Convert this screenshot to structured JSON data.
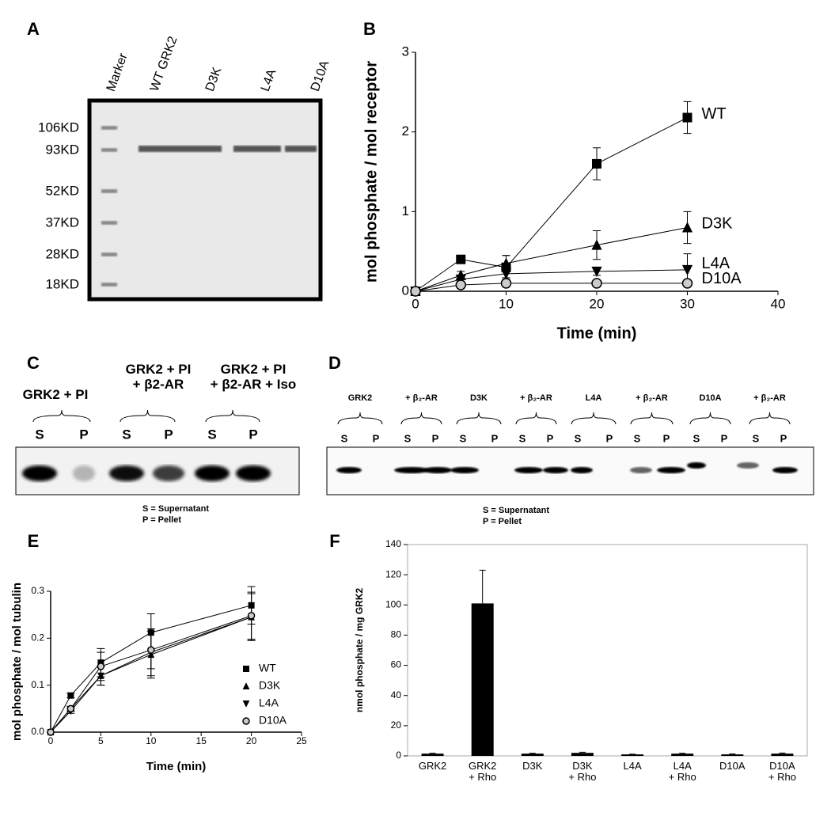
{
  "panels": {
    "A": {
      "label": "A",
      "lanes": [
        "Marker",
        "WT GRK2",
        "D3K",
        "L4A",
        "D10A"
      ],
      "markers": [
        "106KD",
        "93KD",
        "52KD",
        "37KD",
        "28KD",
        "18KD"
      ]
    },
    "C": {
      "label": "C",
      "groups": [
        "GRK2 + PI",
        "GRK2 + PI\n+ β2-AR",
        "GRK2 + PI\n+ β2-AR + Iso"
      ],
      "lanes": [
        "S",
        "P",
        "S",
        "P",
        "S",
        "P"
      ],
      "legend": [
        "S = Supernatant",
        "P = Pellet"
      ]
    },
    "D": {
      "label": "D",
      "groups": [
        "GRK2",
        "+ β₂-AR",
        "D3K",
        "+ β₂-AR",
        "L4A",
        "+ β₂-AR",
        "D10A",
        "+ β₂-AR"
      ],
      "lanes": [
        "S",
        "P",
        "S",
        "P",
        "S",
        "P",
        "S",
        "P",
        "S",
        "P",
        "S",
        "P",
        "S",
        "P",
        "S",
        "P"
      ],
      "legend": [
        "S = Supernatant",
        "P = Pellet"
      ]
    }
  },
  "chart_data": [
    {
      "type": "line",
      "label": "B",
      "xlabel": "Time (min)",
      "ylabel": "mol phosphate / mol receptor",
      "x": [
        0,
        5,
        10,
        20,
        30
      ],
      "xlim": [
        0,
        40
      ],
      "xticks": [
        0,
        10,
        20,
        30,
        40
      ],
      "ylim": [
        0,
        3
      ],
      "yticks": [
        0,
        1,
        2,
        3
      ],
      "legend": "end",
      "series": [
        {
          "name": "WT",
          "color": "#000000",
          "marker": "square",
          "values": [
            0,
            0.4,
            0.3,
            1.6,
            2.18
          ],
          "errors": [
            0,
            0.03,
            0.15,
            0.2,
            0.2
          ]
        },
        {
          "name": "D3K",
          "color": "#000000",
          "marker": "triangle-up",
          "values": [
            0,
            0.2,
            0.35,
            0.58,
            0.8
          ],
          "errors": [
            0,
            0.05,
            0.1,
            0.18,
            0.2
          ]
        },
        {
          "name": "L4A",
          "color": "#000000",
          "marker": "triangle-down",
          "values": [
            0,
            0.15,
            0.22,
            0.25,
            0.27
          ],
          "errors": [
            0,
            0.05,
            0.05,
            0.05,
            0.2
          ]
        },
        {
          "name": "D10A",
          "color": "#000000",
          "marker": "circle",
          "values": [
            0,
            0.08,
            0.1,
            0.1,
            0.1
          ],
          "errors": [
            0,
            0.02,
            0.02,
            0.02,
            0.02
          ]
        }
      ]
    },
    {
      "type": "line",
      "label": "E",
      "xlabel": "Time (min)",
      "ylabel": "mol phosphate / mol tubulin",
      "x": [
        0,
        2,
        5,
        10,
        20
      ],
      "xlim": [
        0,
        25
      ],
      "xticks": [
        0,
        5,
        10,
        15,
        20,
        25
      ],
      "ylim": [
        0,
        0.3
      ],
      "yticks": [
        {
          "value": 0,
          "label": "0.0"
        },
        0.1,
        0.2,
        0.3
      ],
      "legend": "lower right",
      "series": [
        {
          "name": "WT",
          "color": "#000000",
          "marker": "square",
          "values": [
            0,
            0.078,
            0.148,
            0.212,
            0.27
          ],
          "errors": [
            0,
            0.005,
            0.03,
            0.04,
            0.04
          ]
        },
        {
          "name": "D3K",
          "color": "#000000",
          "marker": "triangle-up",
          "values": [
            0,
            0.05,
            0.12,
            0.165,
            0.245
          ],
          "errors": [
            0,
            0.005,
            0.02,
            0.05,
            0.05
          ]
        },
        {
          "name": "L4A",
          "color": "#000000",
          "marker": "triangle-down",
          "values": [
            0,
            0.045,
            0.12,
            0.17,
            0.245
          ],
          "errors": [
            0,
            0.005,
            0.02,
            0.05,
            0.05
          ]
        },
        {
          "name": "D10A",
          "color": "#000000",
          "marker": "circle",
          "values": [
            0,
            0.05,
            0.14,
            0.175,
            0.248
          ],
          "errors": [
            0,
            0.005,
            0.03,
            0.04,
            0.05
          ]
        }
      ]
    },
    {
      "type": "bar",
      "label": "F",
      "ylabel": "nmol phosphate / mg GRK2",
      "categories": [
        "GRK2",
        "GRK2\n+ Rho",
        "D3K",
        "D3K\n+ Rho",
        "L4A",
        "L4A\n+ Rho",
        "D10A",
        "D10A\n+ Rho"
      ],
      "values": [
        1.5,
        101,
        1.5,
        2,
        1,
        1.5,
        1,
        1.5
      ],
      "errors": [
        0.3,
        22,
        0.3,
        0.4,
        0.2,
        0.3,
        0.3,
        0.4
      ],
      "color": "#000000",
      "ylim": [
        0,
        140
      ],
      "yticks": [
        0,
        20,
        40,
        60,
        80,
        100,
        120,
        140
      ]
    }
  ]
}
